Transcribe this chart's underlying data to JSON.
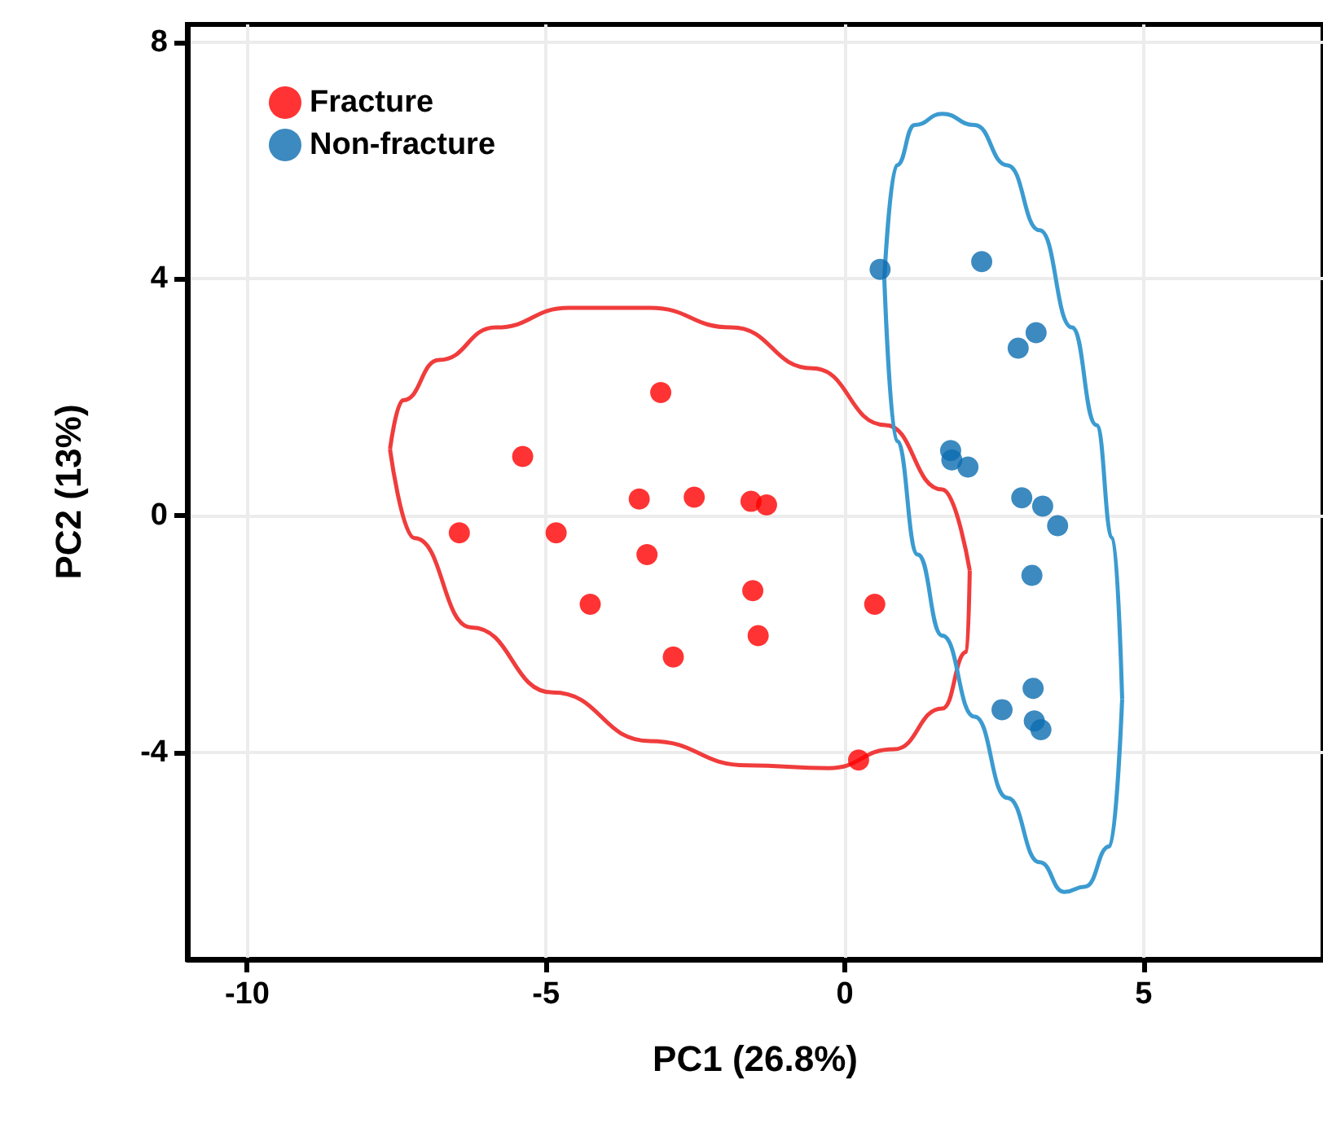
{
  "chart_data": {
    "type": "scatter",
    "xlabel": "PC1 (26.8%)",
    "ylabel": "PC2 (13%)",
    "xlim": [
      -11,
      8
    ],
    "ylim": [
      -7.5,
      8.3
    ],
    "xticks": [
      -10,
      -5,
      0,
      5
    ],
    "yticks": [
      -4,
      0,
      4,
      8
    ],
    "grid": true,
    "legend": "top left",
    "marker": "circle",
    "series": [
      {
        "name": "Fracture",
        "color": "#ff0000",
        "x": [
          -3.08,
          -5.39,
          -6.45,
          -4.83,
          -3.44,
          -2.52,
          -1.57,
          -1.31,
          -3.31,
          -4.26,
          -1.54,
          -1.45,
          -2.87,
          0.5,
          0.23
        ],
        "values": [
          2.08,
          1.0,
          -0.29,
          -0.29,
          0.28,
          0.31,
          0.24,
          0.18,
          -0.66,
          -1.5,
          -1.27,
          -2.03,
          -2.39,
          -1.5,
          -4.13
        ]
      },
      {
        "name": "Non-fracture",
        "color": "#0b6db0",
        "x": [
          0.59,
          2.29,
          3.2,
          2.9,
          1.77,
          1.79,
          2.06,
          2.96,
          3.31,
          3.56,
          3.13,
          3.15,
          2.63,
          3.17,
          3.28
        ],
        "values": [
          4.16,
          4.29,
          3.09,
          2.83,
          1.1,
          0.94,
          0.82,
          0.3,
          0.16,
          -0.17,
          -1.01,
          -2.92,
          -3.28,
          -3.47,
          -3.62
        ]
      },
      {
        "type": "line",
        "color": "#f03c3c",
        "marker": "none",
        "x": [
          -7.61,
          -7.39,
          -6.79,
          -5.84,
          -4.62,
          -3.26,
          -1.9,
          -0.54,
          0.68,
          1.63,
          2.09
        ],
        "values": [
          1.12,
          1.95,
          2.63,
          3.18,
          3.51,
          3.51,
          3.18,
          2.49,
          1.53,
          0.44,
          -0.93
        ]
      },
      {
        "type": "line",
        "color": "#f03c3c",
        "marker": "none",
        "x": [
          -7.61,
          -7.2,
          -6.25,
          -4.89,
          -3.26,
          -1.63,
          -0.27,
          0.82,
          1.63,
          2.04,
          2.09
        ],
        "values": [
          1.12,
          -0.38,
          -1.89,
          -2.99,
          -3.81,
          -4.22,
          -4.27,
          -3.95,
          -3.26,
          -2.3,
          -0.93
        ]
      },
      {
        "type": "line",
        "color": "#3b9bd0",
        "marker": "none",
        "x": [
          0.66,
          0.87,
          1.17,
          1.63,
          2.17,
          2.72,
          3.26,
          3.8,
          4.21,
          4.48,
          4.64
        ],
        "values": [
          4.0,
          5.92,
          6.6,
          6.79,
          6.6,
          5.92,
          4.82,
          3.18,
          1.53,
          -0.38,
          -3.1
        ]
      },
      {
        "type": "line",
        "color": "#3b9bd0",
        "marker": "none",
        "x": [
          0.66,
          0.87,
          1.22,
          1.63,
          2.17,
          2.72,
          3.26,
          3.67,
          4.02,
          4.43,
          4.64
        ],
        "values": [
          4.0,
          1.26,
          -0.66,
          -2.03,
          -3.4,
          -4.77,
          -5.86,
          -6.36,
          -6.27,
          -5.59,
          -3.1
        ]
      }
    ]
  }
}
